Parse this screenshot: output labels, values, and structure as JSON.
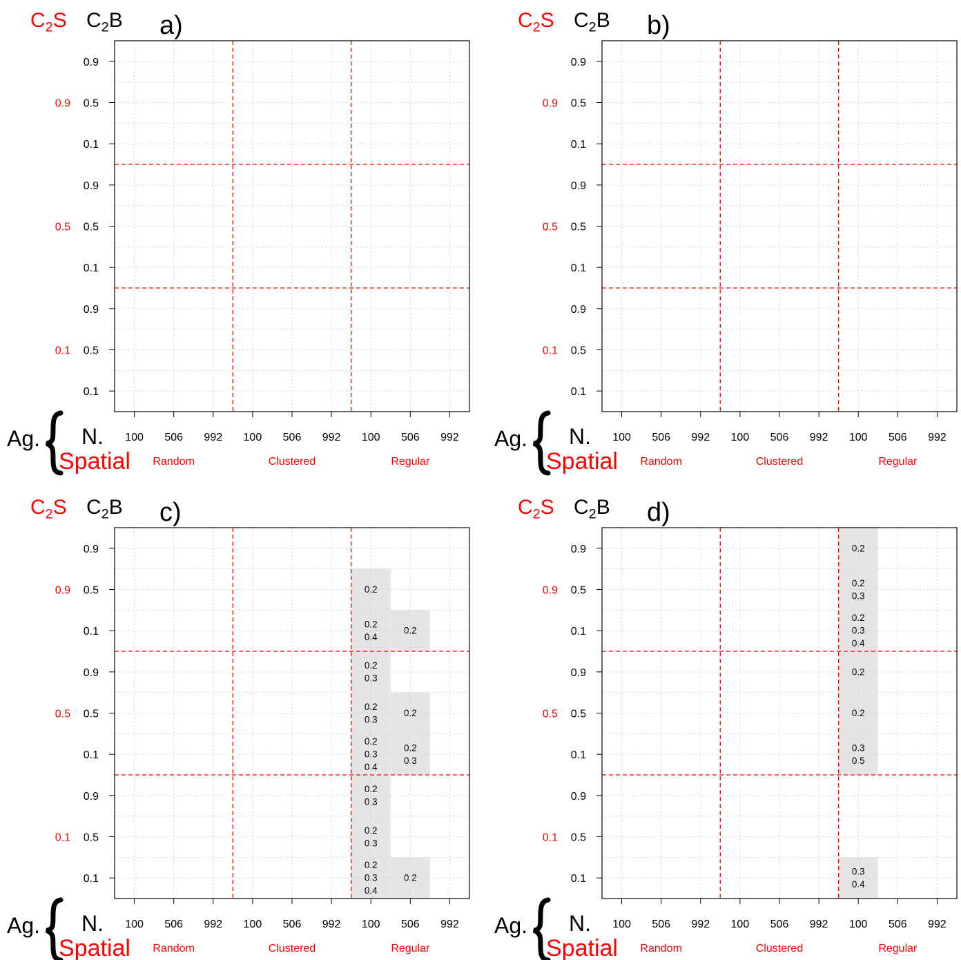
{
  "chart_data": [
    {
      "type": "heatmap",
      "panel_label": "a)",
      "header": {
        "c2s": "C2S",
        "c2b": "C2B"
      },
      "c2s_levels": [
        "0.9",
        "0.5",
        "0.1"
      ],
      "c2b_levels": [
        "0.9",
        "0.5",
        "0.1"
      ],
      "n_levels": [
        "100",
        "506",
        "992"
      ],
      "spatial_levels": [
        "Random",
        "Clustered",
        "Regular"
      ],
      "row_axis_labels": {
        "ag": "Ag.",
        "n": "N.",
        "spatial": "Spatial"
      },
      "grid": true,
      "cells": []
    },
    {
      "type": "heatmap",
      "panel_label": "b)",
      "header": {
        "c2s": "C2S",
        "c2b": "C2B"
      },
      "c2s_levels": [
        "0.9",
        "0.5",
        "0.1"
      ],
      "c2b_levels": [
        "0.9",
        "0.5",
        "0.1"
      ],
      "n_levels": [
        "100",
        "506",
        "992"
      ],
      "spatial_levels": [
        "Random",
        "Clustered",
        "Regular"
      ],
      "row_axis_labels": {
        "ag": "Ag.",
        "n": "N.",
        "spatial": "Spatial"
      },
      "grid": true,
      "cells": []
    },
    {
      "type": "heatmap",
      "panel_label": "c)",
      "header": {
        "c2s": "C2S",
        "c2b": "C2B"
      },
      "c2s_levels": [
        "0.9",
        "0.5",
        "0.1"
      ],
      "c2b_levels": [
        "0.9",
        "0.5",
        "0.1"
      ],
      "n_levels": [
        "100",
        "506",
        "992"
      ],
      "spatial_levels": [
        "Random",
        "Clustered",
        "Regular"
      ],
      "row_axis_labels": {
        "ag": "Ag.",
        "n": "N.",
        "spatial": "Spatial"
      },
      "grid": true,
      "cells": [
        {
          "c2s": "0.9",
          "c2b": "0.5",
          "spatial": "Regular",
          "n": "100",
          "values": [
            "0.2"
          ]
        },
        {
          "c2s": "0.9",
          "c2b": "0.1",
          "spatial": "Regular",
          "n": "100",
          "values": [
            "0.2",
            "0.4"
          ]
        },
        {
          "c2s": "0.9",
          "c2b": "0.1",
          "spatial": "Regular",
          "n": "506",
          "values": [
            "0.2"
          ]
        },
        {
          "c2s": "0.5",
          "c2b": "0.9",
          "spatial": "Regular",
          "n": "100",
          "values": [
            "0.2",
            "0.3"
          ]
        },
        {
          "c2s": "0.5",
          "c2b": "0.5",
          "spatial": "Regular",
          "n": "100",
          "values": [
            "0.2",
            "0.3"
          ]
        },
        {
          "c2s": "0.5",
          "c2b": "0.5",
          "spatial": "Regular",
          "n": "506",
          "values": [
            "0.2"
          ]
        },
        {
          "c2s": "0.5",
          "c2b": "0.1",
          "spatial": "Regular",
          "n": "100",
          "values": [
            "0.2",
            "0.3",
            "0.4"
          ]
        },
        {
          "c2s": "0.5",
          "c2b": "0.1",
          "spatial": "Regular",
          "n": "506",
          "values": [
            "0.2",
            "0.3"
          ]
        },
        {
          "c2s": "0.1",
          "c2b": "0.9",
          "spatial": "Regular",
          "n": "100",
          "values": [
            "0.2",
            "0.3"
          ]
        },
        {
          "c2s": "0.1",
          "c2b": "0.5",
          "spatial": "Regular",
          "n": "100",
          "values": [
            "0.2",
            "0.3"
          ]
        },
        {
          "c2s": "0.1",
          "c2b": "0.1",
          "spatial": "Regular",
          "n": "100",
          "values": [
            "0.2",
            "0.3",
            "0.4"
          ]
        },
        {
          "c2s": "0.1",
          "c2b": "0.1",
          "spatial": "Regular",
          "n": "506",
          "values": [
            "0.2"
          ]
        }
      ]
    },
    {
      "type": "heatmap",
      "panel_label": "d)",
      "header": {
        "c2s": "C2S",
        "c2b": "C2B"
      },
      "c2s_levels": [
        "0.9",
        "0.5",
        "0.1"
      ],
      "c2b_levels": [
        "0.9",
        "0.5",
        "0.1"
      ],
      "n_levels": [
        "100",
        "506",
        "992"
      ],
      "spatial_levels": [
        "Random",
        "Clustered",
        "Regular"
      ],
      "row_axis_labels": {
        "ag": "Ag.",
        "n": "N.",
        "spatial": "Spatial"
      },
      "grid": true,
      "cells": [
        {
          "c2s": "0.9",
          "c2b": "0.9",
          "spatial": "Regular",
          "n": "100",
          "values": [
            "0.2"
          ]
        },
        {
          "c2s": "0.9",
          "c2b": "0.5",
          "spatial": "Regular",
          "n": "100",
          "values": [
            "0.2",
            "0.3"
          ]
        },
        {
          "c2s": "0.9",
          "c2b": "0.1",
          "spatial": "Regular",
          "n": "100",
          "values": [
            "0.2",
            "0.3",
            "0.4"
          ]
        },
        {
          "c2s": "0.5",
          "c2b": "0.9",
          "spatial": "Regular",
          "n": "100",
          "values": [
            "0.2"
          ]
        },
        {
          "c2s": "0.5",
          "c2b": "0.5",
          "spatial": "Regular",
          "n": "100",
          "values": [
            "0.2"
          ]
        },
        {
          "c2s": "0.5",
          "c2b": "0.1",
          "spatial": "Regular",
          "n": "100",
          "values": [
            "0.3",
            "0.5"
          ]
        },
        {
          "c2s": "0.1",
          "c2b": "0.1",
          "spatial": "Regular",
          "n": "100",
          "values": [
            "0.3",
            "0.4"
          ]
        }
      ]
    }
  ],
  "colors": {
    "accent_red": "#ff0000",
    "cell_fill": "#e5e5e5",
    "grid_dotted": "#d3d3d3",
    "text": "#000000"
  }
}
